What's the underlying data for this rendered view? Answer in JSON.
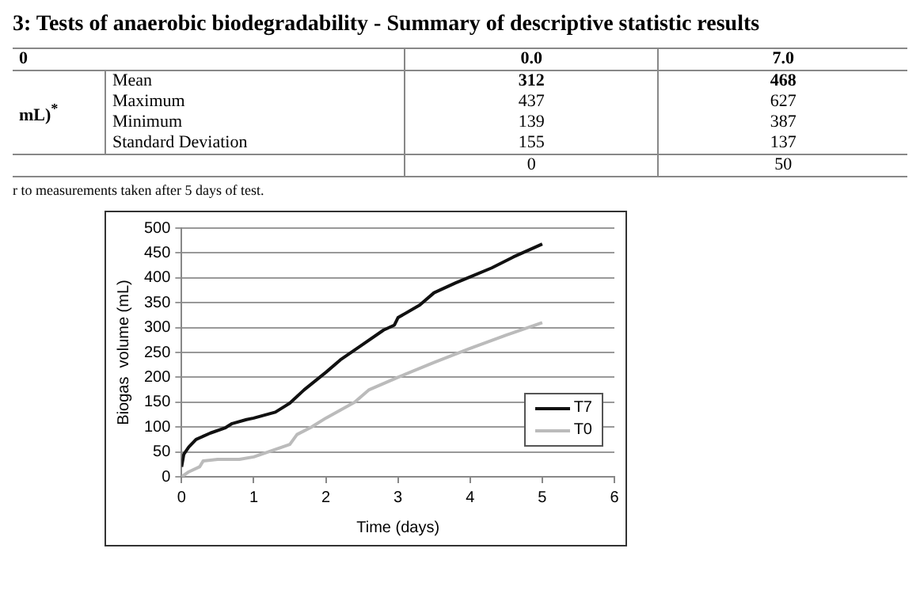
{
  "chart_data": {
    "type": "line",
    "xlabel": "Time (days)",
    "ylabel": "Biogas  volume (mL)",
    "xlim": [
      0,
      6
    ],
    "xticks": [
      0,
      1,
      2,
      3,
      4,
      5,
      6
    ],
    "ylim": [
      0,
      500
    ],
    "yticks": [
      0,
      50,
      100,
      150,
      200,
      250,
      300,
      350,
      400,
      450,
      500
    ],
    "grid": "y",
    "legend": "bottom right",
    "marker": "none",
    "line_style": "solid",
    "annotations": [
      "3: Tests of anaerobic biodegradability - Summary of descriptive statistic results",
      "0",
      "0.0",
      "7.0",
      "mL)$^{*}$",
      "Mean",
      "312",
      "468",
      "Maximum",
      "437",
      "627",
      "Minimum",
      "139",
      "387",
      "Standard Deviation",
      "155",
      "137",
      "0",
      "50",
      "r to measurements taken after 5 days of test."
    ],
    "series": [
      {
        "name": "T7",
        "color": "#111111",
        "x": [
          0,
          0.03,
          0.1,
          0.2,
          0.4,
          0.6,
          0.7,
          0.9,
          1.0,
          1.3,
          1.5,
          1.7,
          2.0,
          2.2,
          2.5,
          2.8,
          2.95,
          3.0,
          3.3,
          3.5,
          3.8,
          4.0,
          4.3,
          4.6,
          5.0
        ],
        "values": [
          20,
          45,
          60,
          75,
          88,
          98,
          107,
          115,
          118,
          130,
          148,
          175,
          210,
          235,
          265,
          295,
          305,
          320,
          345,
          370,
          390,
          402,
          420,
          442,
          468
        ]
      },
      {
        "name": "T0",
        "color": "#bbbbbb",
        "x": [
          0,
          0.1,
          0.25,
          0.3,
          0.5,
          0.8,
          1.0,
          1.2,
          1.5,
          1.6,
          1.8,
          2.0,
          2.4,
          2.6,
          3.0,
          3.5,
          4.0,
          4.5,
          5.0
        ],
        "values": [
          0,
          10,
          20,
          32,
          35,
          35,
          40,
          50,
          65,
          85,
          100,
          118,
          150,
          175,
          200,
          230,
          258,
          285,
          310
        ]
      }
    ]
  }
}
